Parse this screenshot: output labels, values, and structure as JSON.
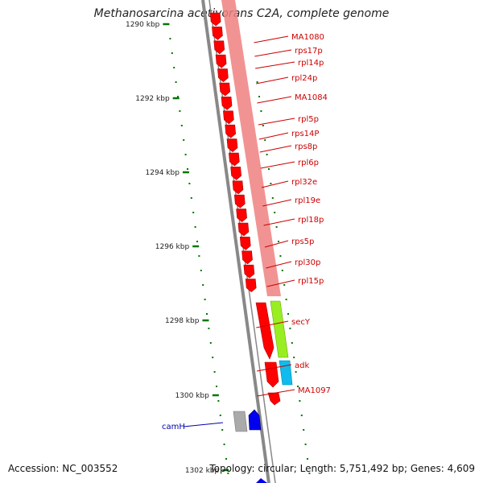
{
  "title": "Methanosarcina acetivorans C2A, complete genome",
  "footer": {
    "accession": "Accession: NC_003552",
    "topology": "Topology: circular; Length: 5,751,492 bp; Genes: 4,609"
  },
  "scale_labels": [
    "1290 kbp",
    "1292 kbp",
    "1294 kbp",
    "1296 kbp",
    "1298 kbp",
    "1300 kbp",
    "1302 kbp"
  ],
  "genes_right": [
    "MA1080",
    "rps17p",
    "rpl14p",
    "rpl24p",
    "MA1084",
    "rpl5p",
    "rps14P",
    "rps8p",
    "rpl6p",
    "rpl32e",
    "rpl19e",
    "rpl18p",
    "rps5p",
    "rpl30p",
    "rpl15p",
    "secY",
    "adk",
    "MA1097"
  ],
  "genes_left": [
    "camH"
  ],
  "colors": {
    "gene_label": "#cc0000",
    "gene_label_left": "#0000aa",
    "strand_red": "#ff0000",
    "ribosomal_band": "#f08080",
    "secY_box": "#99ee22",
    "adk_box": "#11bbee",
    "camH_arrow": "#0000ee",
    "grey_box": "#aaaaaa",
    "tick": "#007700",
    "backbone": "#888888"
  }
}
